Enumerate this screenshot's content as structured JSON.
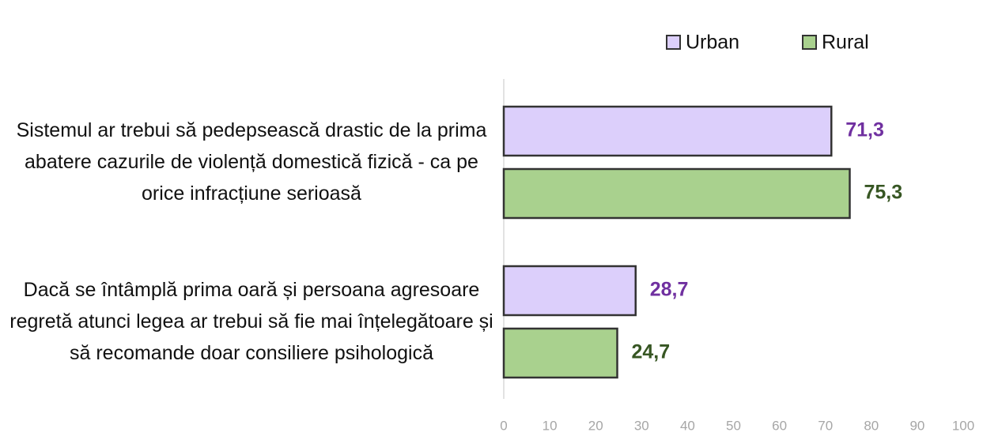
{
  "chart_data": {
    "type": "hbar",
    "categories": [
      "Sistemul ar trebui să pedepsească drastic de la prima abatere cazurile de violență domestică fizică - ca pe orice infracțiune serioasă",
      "Dacă se întâmplă prima oară și persoana agresoare regretă atunci legea ar trebui să fie mai înțelegătoare și să recomande doar consiliere psihologică"
    ],
    "series": [
      {
        "name": "Urban",
        "color": "#dccffb",
        "label_color": "#7030a0",
        "values": [
          71.3,
          28.7
        ],
        "value_labels": [
          "71,3",
          "28,7"
        ]
      },
      {
        "name": "Rural",
        "color": "#a9d18e",
        "label_color": "#375623",
        "values": [
          75.3,
          24.7
        ],
        "value_labels": [
          "75,3",
          "24,7"
        ]
      }
    ],
    "xlim": [
      0,
      100
    ],
    "xticks": [
      0,
      10,
      20,
      30,
      40,
      50,
      60,
      70,
      80,
      90,
      100
    ],
    "grid": false,
    "legend": "top"
  }
}
